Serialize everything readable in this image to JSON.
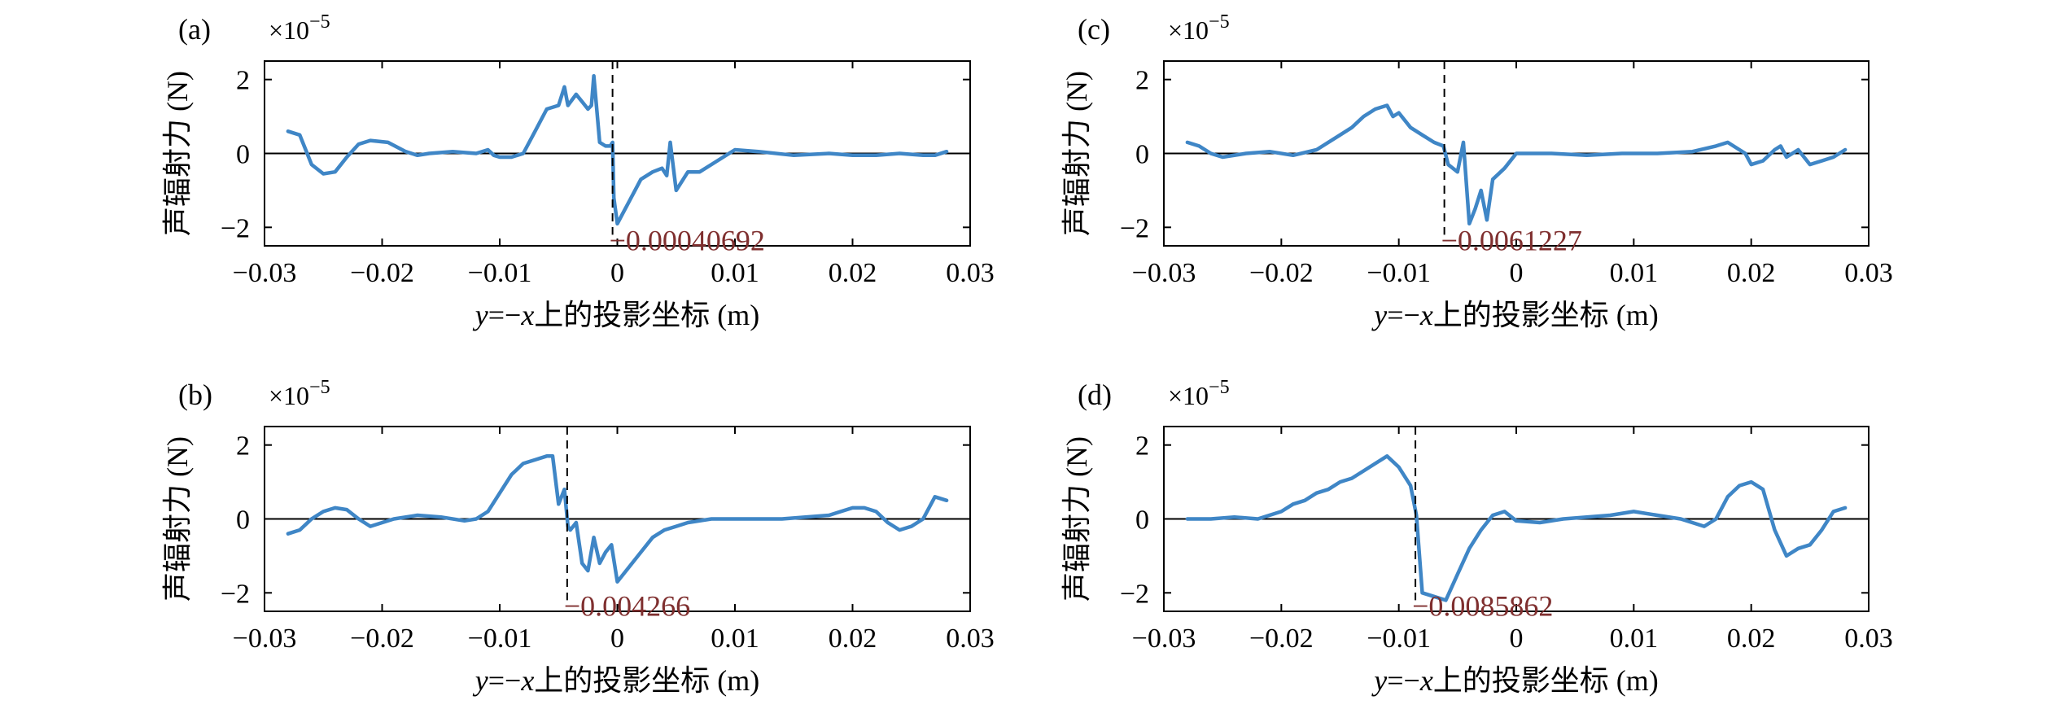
{
  "figure": {
    "ylabel": "声辐射力 (N)",
    "xlabel_parts": [
      "y",
      "=−",
      "x",
      "上的投影坐标 (m)"
    ],
    "exponent_base": "×10",
    "exponent_power": "−5"
  },
  "chart_data": [
    {
      "type": "line",
      "panel_label": "(a)",
      "xlim": [
        -0.03,
        0.03
      ],
      "ylim": [
        -2.5,
        2.5
      ],
      "xticks": [
        -0.03,
        -0.02,
        -0.01,
        0,
        0.01,
        0.02,
        0.03
      ],
      "xtick_labels": [
        "−0.03",
        "−0.02",
        "−0.01",
        "0",
        "0.01",
        "0.02",
        "0.03"
      ],
      "yticks": [
        -2,
        0,
        2
      ],
      "ytick_labels": [
        "−2",
        "0",
        "2"
      ],
      "y_scale_exponent": -5,
      "marker_x": -0.00040692,
      "annotation": "−0.00040692",
      "series": [
        {
          "color": "#3f86c6",
          "x": [
            -0.028,
            -0.027,
            -0.0265,
            -0.026,
            -0.025,
            -0.024,
            -0.023,
            -0.022,
            -0.021,
            -0.0195,
            -0.018,
            -0.017,
            -0.016,
            -0.014,
            -0.012,
            -0.011,
            -0.0105,
            -0.01,
            -0.009,
            -0.008,
            -0.007,
            -0.006,
            -0.005,
            -0.0045,
            -0.0042,
            -0.0035,
            -0.003,
            -0.0025,
            -0.0022,
            -0.002,
            -0.0015,
            -0.001,
            -0.0006,
            -0.0004,
            -0.0003,
            0,
            0.001,
            0.0015,
            0.002,
            0.003,
            0.0038,
            0.0042,
            0.0045,
            0.005,
            0.006,
            0.007,
            0.008,
            0.009,
            0.01,
            0.012,
            0.015,
            0.018,
            0.02,
            0.022,
            0.024,
            0.026,
            0.027,
            0.028
          ],
          "y": [
            0.6,
            0.5,
            0.1,
            -0.3,
            -0.55,
            -0.5,
            -0.1,
            0.25,
            0.35,
            0.3,
            0.05,
            -0.05,
            0.0,
            0.05,
            0.0,
            0.1,
            -0.05,
            -0.1,
            -0.1,
            0.0,
            0.6,
            1.2,
            1.3,
            1.8,
            1.3,
            1.6,
            1.4,
            1.2,
            1.3,
            2.1,
            0.3,
            0.2,
            0.2,
            0.3,
            -1.2,
            -1.9,
            -1.3,
            -1.0,
            -0.7,
            -0.5,
            -0.4,
            -0.6,
            0.3,
            -1.0,
            -0.5,
            -0.5,
            -0.3,
            -0.1,
            0.1,
            0.05,
            -0.05,
            0.0,
            -0.05,
            -0.05,
            0.0,
            -0.05,
            -0.05,
            0.05
          ]
        }
      ]
    },
    {
      "type": "line",
      "panel_label": "(b)",
      "xlim": [
        -0.03,
        0.03
      ],
      "ylim": [
        -2.5,
        2.5
      ],
      "xticks": [
        -0.03,
        -0.02,
        -0.01,
        0,
        0.01,
        0.02,
        0.03
      ],
      "xtick_labels": [
        "−0.03",
        "−0.02",
        "−0.01",
        "0",
        "0.01",
        "0.02",
        "0.03"
      ],
      "yticks": [
        -2,
        0,
        2
      ],
      "ytick_labels": [
        "−2",
        "0",
        "2"
      ],
      "y_scale_exponent": -5,
      "marker_x": -0.004266,
      "annotation": "−0.004266",
      "series": [
        {
          "color": "#3f86c6",
          "x": [
            -0.028,
            -0.027,
            -0.026,
            -0.025,
            -0.024,
            -0.023,
            -0.022,
            -0.021,
            -0.019,
            -0.017,
            -0.015,
            -0.013,
            -0.012,
            -0.011,
            -0.01,
            -0.009,
            -0.008,
            -0.007,
            -0.006,
            -0.0055,
            -0.005,
            -0.0045,
            -0.0042,
            -0.004,
            -0.0035,
            -0.003,
            -0.0025,
            -0.002,
            -0.0015,
            -0.001,
            -0.0005,
            0,
            0.001,
            0.002,
            0.003,
            0.004,
            0.005,
            0.006,
            0.008,
            0.01,
            0.012,
            0.014,
            0.016,
            0.018,
            0.019,
            0.02,
            0.021,
            0.022,
            0.023,
            0.024,
            0.025,
            0.026,
            0.027,
            0.028
          ],
          "y": [
            -0.4,
            -0.3,
            0.0,
            0.2,
            0.3,
            0.25,
            0.0,
            -0.2,
            0.0,
            0.1,
            0.05,
            -0.05,
            0.0,
            0.2,
            0.7,
            1.2,
            1.5,
            1.6,
            1.7,
            1.7,
            0.4,
            0.8,
            -0.2,
            -0.3,
            -0.1,
            -1.2,
            -1.4,
            -0.5,
            -1.2,
            -0.9,
            -0.7,
            -1.7,
            -1.3,
            -0.9,
            -0.5,
            -0.3,
            -0.2,
            -0.1,
            0.0,
            0.0,
            0.0,
            0.0,
            0.05,
            0.1,
            0.2,
            0.3,
            0.3,
            0.2,
            -0.1,
            -0.3,
            -0.2,
            0.0,
            0.6,
            0.5
          ]
        }
      ]
    },
    {
      "type": "line",
      "panel_label": "(c)",
      "xlim": [
        -0.03,
        0.03
      ],
      "ylim": [
        -2.5,
        2.5
      ],
      "xticks": [
        -0.03,
        -0.02,
        -0.01,
        0,
        0.01,
        0.02,
        0.03
      ],
      "xtick_labels": [
        "−0.03",
        "−0.02",
        "−0.01",
        "0",
        "0.01",
        "0.02",
        "0.03"
      ],
      "yticks": [
        -2,
        0,
        2
      ],
      "ytick_labels": [
        "−2",
        "0",
        "2"
      ],
      "y_scale_exponent": -5,
      "marker_x": -0.0061227,
      "annotation": "−0.0061227",
      "series": [
        {
          "color": "#3f86c6",
          "x": [
            -0.028,
            -0.027,
            -0.026,
            -0.025,
            -0.023,
            -0.021,
            -0.019,
            -0.017,
            -0.015,
            -0.014,
            -0.013,
            -0.012,
            -0.011,
            -0.0105,
            -0.01,
            -0.009,
            -0.008,
            -0.007,
            -0.0062,
            -0.0058,
            -0.005,
            -0.0045,
            -0.004,
            -0.0035,
            -0.003,
            -0.0025,
            -0.002,
            -0.001,
            0,
            0.003,
            0.006,
            0.009,
            0.012,
            0.015,
            0.017,
            0.018,
            0.019,
            0.0195,
            0.02,
            0.021,
            0.022,
            0.0225,
            0.023,
            0.024,
            0.025,
            0.026,
            0.027,
            0.028
          ],
          "y": [
            0.3,
            0.2,
            0.0,
            -0.1,
            0.0,
            0.05,
            -0.05,
            0.1,
            0.5,
            0.7,
            1.0,
            1.2,
            1.3,
            1.0,
            1.1,
            0.7,
            0.5,
            0.3,
            0.2,
            -0.3,
            -0.5,
            0.3,
            -1.9,
            -1.5,
            -1.0,
            -1.8,
            -0.7,
            -0.4,
            0.0,
            0.0,
            -0.05,
            0.0,
            0.0,
            0.05,
            0.2,
            0.3,
            0.1,
            0.0,
            -0.3,
            -0.2,
            0.1,
            0.2,
            -0.1,
            0.1,
            -0.3,
            -0.2,
            -0.1,
            0.1
          ]
        }
      ]
    },
    {
      "type": "line",
      "panel_label": "(d)",
      "xlim": [
        -0.03,
        0.03
      ],
      "ylim": [
        -2.5,
        2.5
      ],
      "xticks": [
        -0.03,
        -0.02,
        -0.01,
        0,
        0.01,
        0.02,
        0.03
      ],
      "xtick_labels": [
        "−0.03",
        "−0.02",
        "−0.01",
        "0",
        "0.01",
        "0.02",
        "0.03"
      ],
      "yticks": [
        -2,
        0,
        2
      ],
      "ytick_labels": [
        "−2",
        "0",
        "2"
      ],
      "y_scale_exponent": -5,
      "marker_x": -0.0085862,
      "annotation": "−0.0085862",
      "series": [
        {
          "color": "#3f86c6",
          "x": [
            -0.028,
            -0.026,
            -0.024,
            -0.022,
            -0.02,
            -0.019,
            -0.018,
            -0.017,
            -0.016,
            -0.015,
            -0.014,
            -0.013,
            -0.012,
            -0.011,
            -0.01,
            -0.009,
            -0.0085,
            -0.008,
            -0.007,
            -0.006,
            -0.005,
            -0.004,
            -0.003,
            -0.002,
            -0.001,
            0,
            0.002,
            0.004,
            0.006,
            0.008,
            0.01,
            0.012,
            0.014,
            0.016,
            0.017,
            0.018,
            0.019,
            0.02,
            0.021,
            0.022,
            0.023,
            0.024,
            0.025,
            0.026,
            0.027,
            0.028
          ],
          "y": [
            0.0,
            0.0,
            0.05,
            0.0,
            0.2,
            0.4,
            0.5,
            0.7,
            0.8,
            1.0,
            1.1,
            1.3,
            1.5,
            1.7,
            1.4,
            0.9,
            0.1,
            -2.0,
            -2.1,
            -2.2,
            -1.5,
            -0.8,
            -0.3,
            0.1,
            0.2,
            -0.05,
            -0.1,
            0.0,
            0.05,
            0.1,
            0.2,
            0.1,
            0.0,
            -0.2,
            0.0,
            0.6,
            0.9,
            1.0,
            0.8,
            -0.3,
            -1.0,
            -0.8,
            -0.7,
            -0.3,
            0.2,
            0.3
          ]
        }
      ]
    }
  ]
}
